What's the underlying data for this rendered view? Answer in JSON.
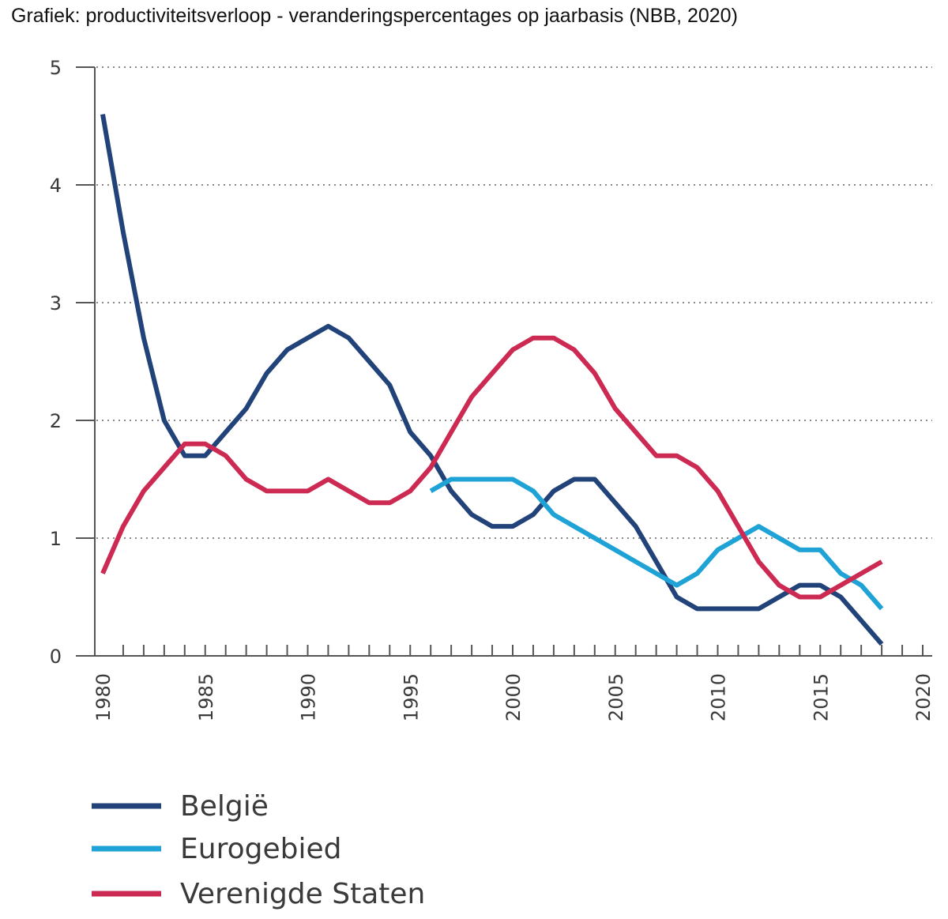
{
  "title": "Grafiek: productiviteitsverloop - veranderingspercentages op jaarbasis (NBB, 2020)",
  "chart_data": {
    "type": "line",
    "xlim": [
      1980,
      2020
    ],
    "ylim": [
      0,
      5
    ],
    "x_ticks": [
      1980,
      1985,
      1990,
      1995,
      2000,
      2005,
      2010,
      2015,
      2020
    ],
    "y_ticks": [
      0,
      1,
      2,
      3,
      4,
      5
    ],
    "grid": "horizontal dotted",
    "legend_position": "bottom-left",
    "series": [
      {
        "name": "België",
        "color": "#22437a",
        "x": [
          1980,
          1981,
          1982,
          1983,
          1984,
          1985,
          1986,
          1987,
          1988,
          1989,
          1990,
          1991,
          1992,
          1993,
          1994,
          1995,
          1996,
          1997,
          1998,
          1999,
          2000,
          2001,
          2002,
          2003,
          2004,
          2005,
          2006,
          2007,
          2008,
          2009,
          2010,
          2011,
          2012,
          2013,
          2014,
          2015,
          2016,
          2017,
          2018
        ],
        "values": [
          4.6,
          3.6,
          2.7,
          2.0,
          1.7,
          1.7,
          1.9,
          2.1,
          2.4,
          2.6,
          2.7,
          2.8,
          2.7,
          2.5,
          2.3,
          1.9,
          1.7,
          1.4,
          1.2,
          1.1,
          1.1,
          1.2,
          1.4,
          1.5,
          1.5,
          1.3,
          1.1,
          0.8,
          0.5,
          0.4,
          0.4,
          0.4,
          0.4,
          0.5,
          0.6,
          0.6,
          0.5,
          0.3,
          0.1
        ]
      },
      {
        "name": "Eurogebied",
        "color": "#1fa3d6",
        "x": [
          1996,
          1997,
          1998,
          1999,
          2000,
          2001,
          2002,
          2003,
          2004,
          2005,
          2006,
          2007,
          2008,
          2009,
          2010,
          2011,
          2012,
          2013,
          2014,
          2015,
          2016,
          2017,
          2018
        ],
        "values": [
          1.4,
          1.5,
          1.5,
          1.5,
          1.5,
          1.4,
          1.2,
          1.1,
          1.0,
          0.9,
          0.8,
          0.7,
          0.6,
          0.7,
          0.9,
          1.0,
          1.1,
          1.0,
          0.9,
          0.9,
          0.7,
          0.6,
          0.4
        ]
      },
      {
        "name": "Verenigde Staten",
        "color": "#cc2a52",
        "x": [
          1980,
          1981,
          1982,
          1983,
          1984,
          1985,
          1986,
          1987,
          1988,
          1989,
          1990,
          1991,
          1992,
          1993,
          1994,
          1995,
          1996,
          1997,
          1998,
          1999,
          2000,
          2001,
          2002,
          2003,
          2004,
          2005,
          2006,
          2007,
          2008,
          2009,
          2010,
          2011,
          2012,
          2013,
          2014,
          2015,
          2016,
          2017,
          2018
        ],
        "values": [
          0.7,
          1.1,
          1.4,
          1.6,
          1.8,
          1.8,
          1.7,
          1.5,
          1.4,
          1.4,
          1.4,
          1.5,
          1.4,
          1.3,
          1.3,
          1.4,
          1.6,
          1.9,
          2.2,
          2.4,
          2.6,
          2.7,
          2.7,
          2.6,
          2.4,
          2.1,
          1.9,
          1.7,
          1.7,
          1.6,
          1.4,
          1.1,
          0.8,
          0.6,
          0.5,
          0.5,
          0.6,
          0.7,
          0.8
        ]
      }
    ]
  }
}
